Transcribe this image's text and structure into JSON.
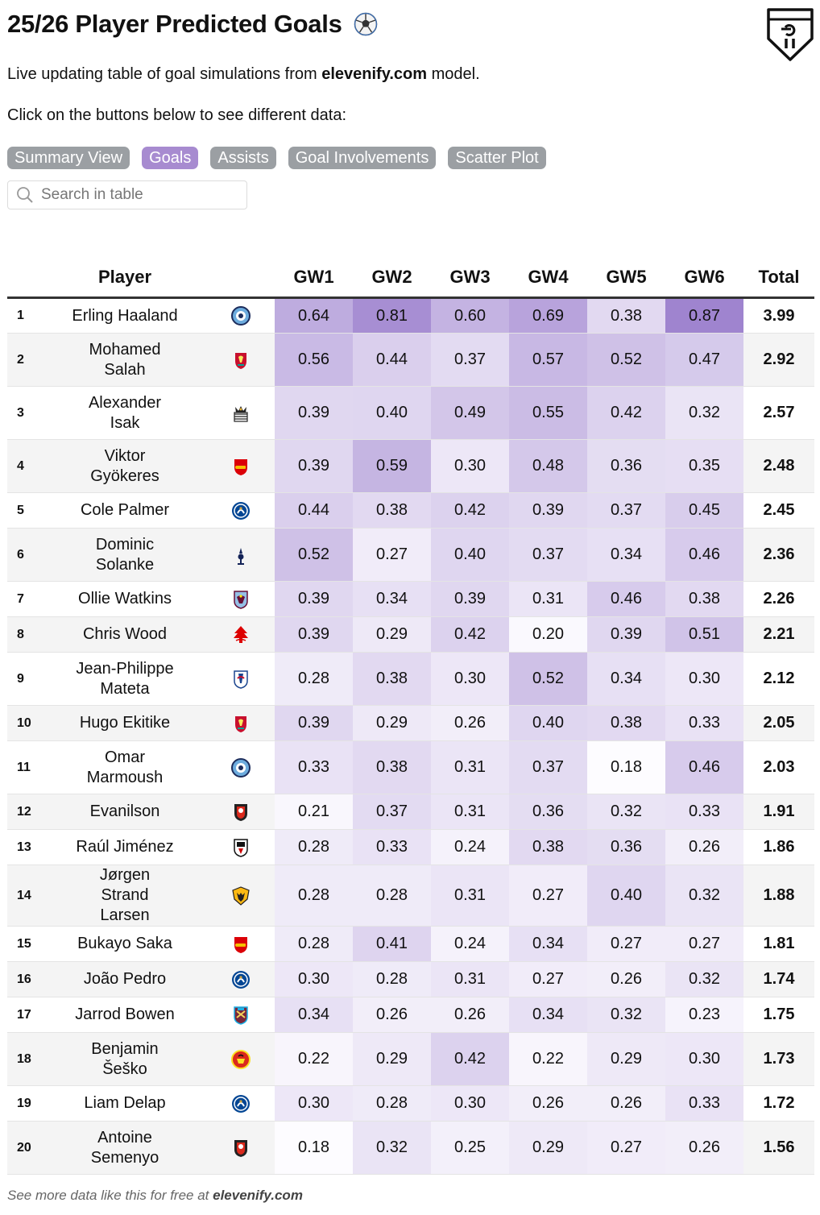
{
  "title": "25/26 Player Predicted Goals",
  "subtitle": {
    "before": "Live updating table of goal simulations from ",
    "site": "elevenify.com",
    "after": " model."
  },
  "instructions": "Click on the buttons below to see different data:",
  "buttons": [
    {
      "label": "Summary View",
      "active": false
    },
    {
      "label": "Goals",
      "active": true
    },
    {
      "label": "Assists",
      "active": false
    },
    {
      "label": "Goal Involvements",
      "active": false
    },
    {
      "label": "Scatter Plot",
      "active": false
    }
  ],
  "search": {
    "placeholder": "Search in table"
  },
  "table": {
    "headers": {
      "player": "Player",
      "gws": [
        "GW1",
        "GW2",
        "GW3",
        "GW4",
        "GW5",
        "GW6"
      ],
      "total": "Total"
    },
    "rows": [
      {
        "rank": "1",
        "player": "Erling Haaland",
        "badge": "man-city-badge-icon",
        "gw": [
          "0.64",
          "0.81",
          "0.60",
          "0.69",
          "0.38",
          "0.87"
        ],
        "total": "3.99"
      },
      {
        "rank": "2",
        "player": "Mohamed Salah",
        "badge": "liverpool-badge-icon",
        "gw": [
          "0.56",
          "0.44",
          "0.37",
          "0.57",
          "0.52",
          "0.47"
        ],
        "total": "2.92"
      },
      {
        "rank": "3",
        "player": "Alexander Isak",
        "badge": "newcastle-badge-icon",
        "gw": [
          "0.39",
          "0.40",
          "0.49",
          "0.55",
          "0.42",
          "0.32"
        ],
        "total": "2.57"
      },
      {
        "rank": "4",
        "player": "Viktor Gyökeres",
        "badge": "arsenal-badge-icon",
        "gw": [
          "0.39",
          "0.59",
          "0.30",
          "0.48",
          "0.36",
          "0.35"
        ],
        "total": "2.48"
      },
      {
        "rank": "5",
        "player": "Cole Palmer",
        "badge": "chelsea-badge-icon",
        "gw": [
          "0.44",
          "0.38",
          "0.42",
          "0.39",
          "0.37",
          "0.45"
        ],
        "total": "2.45"
      },
      {
        "rank": "6",
        "player": "Dominic Solanke",
        "badge": "tottenham-badge-icon",
        "gw": [
          "0.52",
          "0.27",
          "0.40",
          "0.37",
          "0.34",
          "0.46"
        ],
        "total": "2.36"
      },
      {
        "rank": "7",
        "player": "Ollie Watkins",
        "badge": "aston-villa-badge-icon",
        "gw": [
          "0.39",
          "0.34",
          "0.39",
          "0.31",
          "0.46",
          "0.38"
        ],
        "total": "2.26"
      },
      {
        "rank": "8",
        "player": "Chris Wood",
        "badge": "nottingham-forest-badge-icon",
        "gw": [
          "0.39",
          "0.29",
          "0.42",
          "0.20",
          "0.39",
          "0.51"
        ],
        "total": "2.21"
      },
      {
        "rank": "9",
        "player": "Jean-Philippe Mateta",
        "badge": "crystal-palace-badge-icon",
        "gw": [
          "0.28",
          "0.38",
          "0.30",
          "0.52",
          "0.34",
          "0.30"
        ],
        "total": "2.12"
      },
      {
        "rank": "10",
        "player": "Hugo Ekitike",
        "badge": "liverpool-badge-icon",
        "gw": [
          "0.39",
          "0.29",
          "0.26",
          "0.40",
          "0.38",
          "0.33"
        ],
        "total": "2.05"
      },
      {
        "rank": "11",
        "player": "Omar Marmoush",
        "badge": "man-city-badge-icon",
        "gw": [
          "0.33",
          "0.38",
          "0.31",
          "0.37",
          "0.18",
          "0.46"
        ],
        "total": "2.03"
      },
      {
        "rank": "12",
        "player": "Evanilson",
        "badge": "bournemouth-badge-icon",
        "gw": [
          "0.21",
          "0.37",
          "0.31",
          "0.36",
          "0.32",
          "0.33"
        ],
        "total": "1.91"
      },
      {
        "rank": "13",
        "player": "Raúl Jiménez",
        "badge": "fulham-badge-icon",
        "gw": [
          "0.28",
          "0.33",
          "0.24",
          "0.38",
          "0.36",
          "0.26"
        ],
        "total": "1.86"
      },
      {
        "rank": "14",
        "player": "Jørgen Strand Larsen",
        "badge": "wolves-badge-icon",
        "gw": [
          "0.28",
          "0.28",
          "0.31",
          "0.27",
          "0.40",
          "0.32"
        ],
        "total": "1.88"
      },
      {
        "rank": "15",
        "player": "Bukayo Saka",
        "badge": "arsenal-badge-icon",
        "gw": [
          "0.28",
          "0.41",
          "0.24",
          "0.34",
          "0.27",
          "0.27"
        ],
        "total": "1.81"
      },
      {
        "rank": "16",
        "player": "João Pedro",
        "badge": "chelsea-badge-icon",
        "gw": [
          "0.30",
          "0.28",
          "0.31",
          "0.27",
          "0.26",
          "0.32"
        ],
        "total": "1.74"
      },
      {
        "rank": "17",
        "player": "Jarrod Bowen",
        "badge": "west-ham-badge-icon",
        "gw": [
          "0.34",
          "0.26",
          "0.26",
          "0.34",
          "0.32",
          "0.23"
        ],
        "total": "1.75"
      },
      {
        "rank": "18",
        "player": "Benjamin Šeško",
        "badge": "man-united-badge-icon",
        "gw": [
          "0.22",
          "0.29",
          "0.42",
          "0.22",
          "0.29",
          "0.30"
        ],
        "total": "1.73"
      },
      {
        "rank": "19",
        "player": "Liam Delap",
        "badge": "chelsea-badge-icon",
        "gw": [
          "0.30",
          "0.28",
          "0.30",
          "0.26",
          "0.26",
          "0.33"
        ],
        "total": "1.72"
      },
      {
        "rank": "20",
        "player": "Antoine Semenyo",
        "badge": "bournemouth-badge-icon",
        "gw": [
          "0.18",
          "0.32",
          "0.25",
          "0.29",
          "0.27",
          "0.26"
        ],
        "total": "1.56"
      }
    ]
  },
  "footer": {
    "text": "See more data like this for free at ",
    "site": "elevenify.com"
  },
  "colors": {
    "active_button": "#a78bd0",
    "button": "#9b9fa3",
    "heat_high": "#9f84cf"
  }
}
